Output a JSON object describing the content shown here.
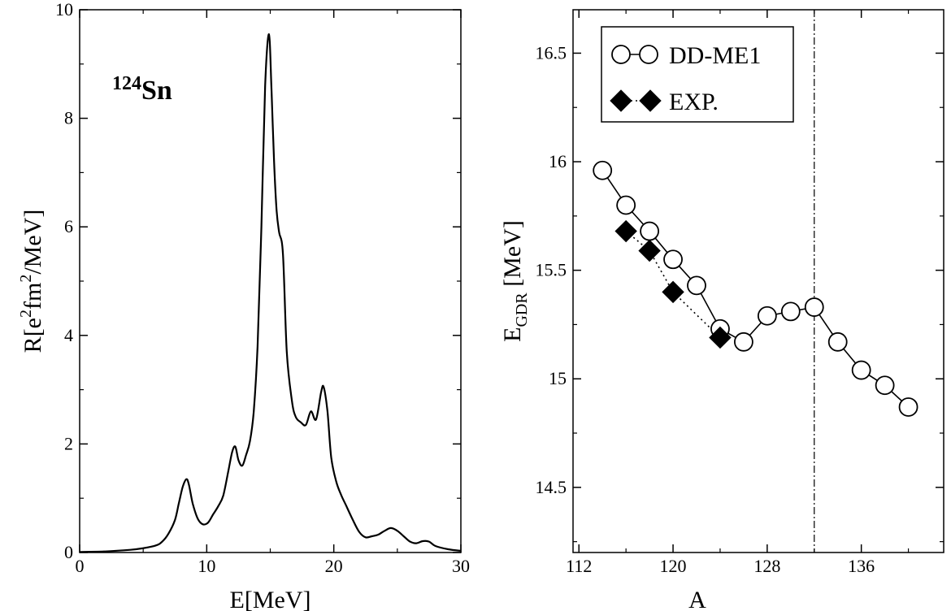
{
  "chart_data": [
    {
      "type": "line",
      "annotation": {
        "mass": "124",
        "element": "Sn"
      },
      "xlabel": "E[MeV]",
      "ylabel": {
        "base": "R[e",
        "sup1": "2",
        "mid": "fm",
        "sup2": "2",
        "tail": "/MeV]"
      },
      "xlim": [
        0,
        30
      ],
      "ylim": [
        0,
        10
      ],
      "xticks": [
        0,
        10,
        20,
        30
      ],
      "yticks": [
        0,
        2,
        4,
        6,
        8,
        10
      ],
      "grid": false,
      "series": [
        {
          "x": [
            0,
            2,
            4,
            5,
            6,
            6.5,
            7,
            7.5,
            7.8,
            8.1,
            8.4,
            8.6,
            8.9,
            9.3,
            9.7,
            10.1,
            10.5,
            10.9,
            11.3,
            11.7,
            12.0,
            12.25,
            12.5,
            12.8,
            13.1,
            13.4,
            13.7,
            14.0,
            14.3,
            14.6,
            14.9,
            15.1,
            15.3,
            15.5,
            15.7,
            16.0,
            16.3,
            16.7,
            17.0,
            17.4,
            17.8,
            18.2,
            18.6,
            19.0,
            19.2,
            19.5,
            19.8,
            20.2,
            20.6,
            21.0,
            21.5,
            22.0,
            22.5,
            23.0,
            23.5,
            24.0,
            24.5,
            25.0,
            25.5,
            26.0,
            26.5,
            27.0,
            27.5,
            28.0,
            29.0,
            30.0
          ],
          "y": [
            0.01,
            0.02,
            0.05,
            0.08,
            0.13,
            0.2,
            0.35,
            0.6,
            0.9,
            1.2,
            1.35,
            1.25,
            0.9,
            0.62,
            0.52,
            0.55,
            0.7,
            0.85,
            1.05,
            1.5,
            1.85,
            1.95,
            1.7,
            1.6,
            1.8,
            2.05,
            2.6,
            3.8,
            6.0,
            8.6,
            9.55,
            8.5,
            7.2,
            6.3,
            5.9,
            5.5,
            3.7,
            2.8,
            2.5,
            2.4,
            2.35,
            2.6,
            2.45,
            2.95,
            3.05,
            2.6,
            1.75,
            1.3,
            1.05,
            0.85,
            0.6,
            0.38,
            0.28,
            0.3,
            0.33,
            0.4,
            0.45,
            0.4,
            0.3,
            0.2,
            0.17,
            0.21,
            0.2,
            0.12,
            0.06,
            0.03
          ]
        }
      ]
    },
    {
      "type": "line",
      "xlabel": "A",
      "ylabel": {
        "base": "E",
        "sub": "GDR",
        "tail": " [MeV]"
      },
      "xlim": [
        111.5,
        143
      ],
      "ylim": [
        14.2,
        16.7
      ],
      "xticks": [
        112,
        120,
        128,
        136
      ],
      "xticks_minor": [
        116,
        124,
        132,
        140
      ],
      "yticks": [
        14.5,
        15,
        15.5,
        16,
        16.5
      ],
      "vline_x": 132,
      "legend_position": "top-left",
      "series": [
        {
          "name": "DD-ME1",
          "marker": "open-circle",
          "linestyle": "solid",
          "x": [
            114,
            116,
            118,
            120,
            122,
            124,
            126,
            128,
            130,
            132,
            134,
            136,
            138,
            140
          ],
          "y": [
            15.96,
            15.8,
            15.68,
            15.55,
            15.43,
            15.23,
            15.17,
            15.29,
            15.31,
            15.33,
            15.17,
            15.04,
            14.97,
            14.87
          ]
        },
        {
          "name": "EXP.",
          "marker": "filled-diamond",
          "linestyle": "dotted",
          "x": [
            116,
            118,
            120,
            124
          ],
          "y": [
            15.68,
            15.59,
            15.4,
            15.19
          ]
        }
      ]
    }
  ]
}
